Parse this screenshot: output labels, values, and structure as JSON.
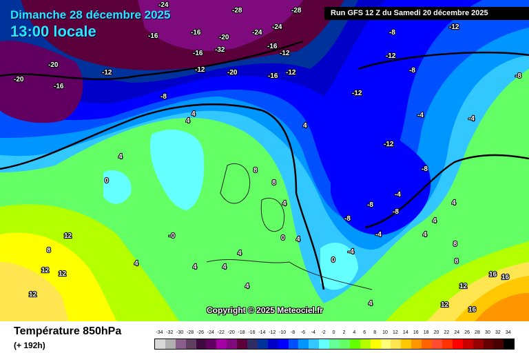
{
  "header": {
    "date": "Dimanche 28 décembre 2025",
    "time": "13:00 locale",
    "run": "Run GFS 12 Z du Samedi 20 décembre 2025"
  },
  "copyright": "Copyright © 2025 Meteociel.fr",
  "footer": {
    "title": "Température 850hPa",
    "subtitle": "(+ 192h)"
  },
  "legend": {
    "unit_values": [
      "-34",
      "-32",
      "-30",
      "-28",
      "-26",
      "-24",
      "-22",
      "-20",
      "-18",
      "-16",
      "-14",
      "-12",
      "-10",
      "-8",
      "-6",
      "-4",
      "-2",
      "0",
      "2",
      "4",
      "6",
      "8",
      "10",
      "12",
      "14",
      "16",
      "18",
      "20",
      "22",
      "24",
      "26",
      "28",
      "30",
      "32",
      "34"
    ],
    "colors": [
      "#d8d8d8",
      "#b0b0b0",
      "#8c5e8c",
      "#603f60",
      "#3f0a3f",
      "#620062",
      "#a400a4",
      "#7e0a7e",
      "#5c003c",
      "#2e2e64",
      "#00329c",
      "#0000c8",
      "#0000ff",
      "#0050ff",
      "#0096ff",
      "#32c8ff",
      "#64ffff",
      "#64ff96",
      "#64ff64",
      "#64ff00",
      "#b4ff00",
      "#ffff00",
      "#ffff78",
      "#ffe650",
      "#ffc800",
      "#ff9600",
      "#ff6400",
      "#ff4b32",
      "#ff3200",
      "#ff0000",
      "#c80000",
      "#960000",
      "#640000",
      "#480000",
      "#000000"
    ]
  },
  "map_labels": [
    "-24",
    "-28",
    "-24",
    "-16",
    "-16",
    "-16",
    "-20",
    "-32",
    "-28",
    "-24",
    "-16",
    "-12",
    "-20",
    "-20",
    "-16",
    "-12",
    "-20",
    "-12",
    "-8",
    "-16",
    "-12",
    "-8",
    "-12",
    "-12",
    "-12",
    "-8",
    "-12",
    "-8",
    "-4",
    "-8",
    "-4",
    "0",
    "4",
    "4",
    "4",
    "4",
    "8",
    "8",
    "4",
    "0",
    "-0",
    "4",
    "12",
    "12",
    "8",
    "12",
    "12",
    "4",
    "4",
    "4",
    "4",
    "4",
    "0",
    "-4",
    "-8",
    "-8",
    "-8",
    "-4",
    "-4",
    "4",
    "4",
    "8",
    "8",
    "12",
    "12",
    "16",
    "16",
    "16",
    "4",
    "4"
  ]
}
